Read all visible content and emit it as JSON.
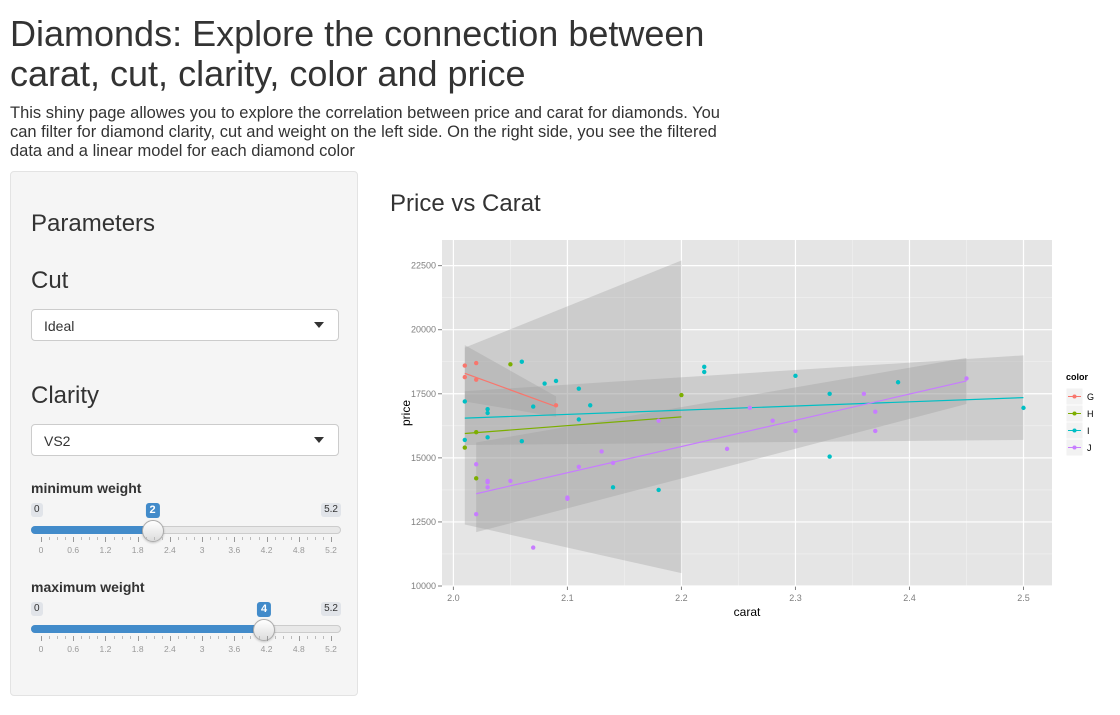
{
  "page": {
    "title": "Diamonds: Explore the connection between carat, cut, clarity, color and price",
    "description": "This shiny page allowes you to explore the correlation between price and carat for diamonds. You can filter for diamond clarity, cut and weight on the left side. On the right side, you see the filtered data and a linear model for each diamond color"
  },
  "sidebar": {
    "heading": "Parameters",
    "cut": {
      "label": "Cut",
      "value": "Ideal"
    },
    "clarity": {
      "label": "Clarity",
      "value": "VS2"
    },
    "min_weight": {
      "label": "minimum weight",
      "min": "0",
      "max": "5.2",
      "value": "2",
      "value_num": 2,
      "ticks": [
        "0",
        "0.6",
        "1.2",
        "1.8",
        "2.4",
        "3",
        "3.6",
        "4.2",
        "4.8",
        "5.2"
      ]
    },
    "max_weight": {
      "label": "maximum weight",
      "min": "0",
      "max": "5.2",
      "value": "4",
      "value_num": 4,
      "ticks": [
        "0",
        "0.6",
        "1.2",
        "1.8",
        "2.4",
        "3",
        "3.6",
        "4.2",
        "4.8",
        "5.2"
      ]
    },
    "accent_color": "#428bca"
  },
  "plot": {
    "title": "Price vs Carat"
  },
  "chart_data": {
    "type": "scatter",
    "xlabel": "carat",
    "ylabel": "price",
    "xlim": [
      1.99,
      2.525
    ],
    "ylim": [
      10000,
      23500
    ],
    "xticks": [
      "2.0",
      "2.1",
      "2.2",
      "2.3",
      "2.4",
      "2.5"
    ],
    "yticks": [
      "10000",
      "12500",
      "15000",
      "17500",
      "20000",
      "22500"
    ],
    "grid": true,
    "legend": {
      "title": "color",
      "position": "right"
    },
    "series": [
      {
        "name": "G",
        "color": "#f8766d",
        "points": [
          [
            2.01,
            18600
          ],
          [
            2.01,
            18150
          ],
          [
            2.02,
            18050
          ],
          [
            2.02,
            18700
          ],
          [
            2.09,
            17050
          ]
        ],
        "fit": {
          "x": [
            2.01,
            2.09
          ],
          "y": [
            18300,
            17000
          ]
        },
        "band": {
          "upper": [
            19400,
            17400
          ],
          "lower": [
            17200,
            16600
          ]
        }
      },
      {
        "name": "H",
        "color": "#7cae00",
        "points": [
          [
            2.01,
            15400
          ],
          [
            2.02,
            16000
          ],
          [
            2.02,
            14200
          ],
          [
            2.05,
            18650
          ],
          [
            2.2,
            17450
          ]
        ],
        "fit": {
          "x": [
            2.01,
            2.2
          ],
          "y": [
            15950,
            16600
          ]
        },
        "band": {
          "upper": [
            19300,
            22700
          ],
          "lower": [
            12400,
            10500
          ]
        }
      },
      {
        "name": "I",
        "color": "#00bfc4",
        "points": [
          [
            2.01,
            17200
          ],
          [
            2.01,
            15700
          ],
          [
            2.03,
            16900
          ],
          [
            2.03,
            16750
          ],
          [
            2.03,
            15800
          ],
          [
            2.06,
            18750
          ],
          [
            2.06,
            15650
          ],
          [
            2.07,
            17000
          ],
          [
            2.08,
            17900
          ],
          [
            2.09,
            18000
          ],
          [
            2.11,
            17700
          ],
          [
            2.11,
            16500
          ],
          [
            2.12,
            17050
          ],
          [
            2.14,
            13850
          ],
          [
            2.18,
            13750
          ],
          [
            2.22,
            18550
          ],
          [
            2.22,
            18350
          ],
          [
            2.3,
            18200
          ],
          [
            2.33,
            17500
          ],
          [
            2.33,
            15050
          ],
          [
            2.39,
            17950
          ],
          [
            2.5,
            16950
          ]
        ],
        "fit": {
          "x": [
            2.01,
            2.5
          ],
          "y": [
            16550,
            17350
          ]
        },
        "band": {
          "upper": [
            17600,
            19000
          ],
          "lower": [
            15500,
            15700
          ]
        }
      },
      {
        "name": "J",
        "color": "#c77cff",
        "points": [
          [
            2.02,
            14750
          ],
          [
            2.02,
            12800
          ],
          [
            2.03,
            14100
          ],
          [
            2.03,
            14050
          ],
          [
            2.03,
            13850
          ],
          [
            2.05,
            14100
          ],
          [
            2.07,
            11500
          ],
          [
            2.1,
            13450
          ],
          [
            2.1,
            13400
          ],
          [
            2.11,
            14650
          ],
          [
            2.13,
            15250
          ],
          [
            2.14,
            14800
          ],
          [
            2.18,
            16450
          ],
          [
            2.24,
            15350
          ],
          [
            2.26,
            16950
          ],
          [
            2.28,
            16450
          ],
          [
            2.3,
            16050
          ],
          [
            2.36,
            17500
          ],
          [
            2.37,
            16800
          ],
          [
            2.37,
            16050
          ],
          [
            2.45,
            18100
          ]
        ],
        "fit": {
          "x": [
            2.02,
            2.45
          ],
          "y": [
            13600,
            18000
          ]
        },
        "band": {
          "upper": [
            15600,
            18900
          ],
          "lower": [
            12100,
            17100
          ]
        }
      }
    ]
  }
}
